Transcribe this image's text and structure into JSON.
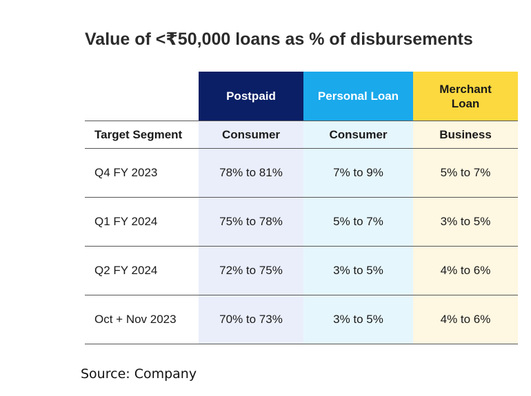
{
  "title": "Value of <₹50,000 loans as % of disbursements",
  "header": {
    "col0": "",
    "col1": "Postpaid",
    "col2": "Personal Loan",
    "col3_line1": "Merchant",
    "col3_line2": "Loan"
  },
  "segment": {
    "label": "Target Segment",
    "col1": "Consumer",
    "col2": "Consumer",
    "col3": "Business"
  },
  "rows": [
    {
      "period": "Q4 FY 2023",
      "postpaid": "78% to 81%",
      "personal_loan": "7% to 9%",
      "merchant_loan": "5% to 7%"
    },
    {
      "period": "Q1 FY 2024",
      "postpaid": "75% to 78%",
      "personal_loan": "5% to 7%",
      "merchant_loan": "3% to 5%"
    },
    {
      "period": "Q2 FY 2024",
      "postpaid": "72% to 75%",
      "personal_loan": "3% to 5%",
      "merchant_loan": "4% to 6%"
    },
    {
      "period": "Oct + Nov 2023",
      "postpaid": "70% to 73%",
      "personal_loan": "3% to 5%",
      "merchant_loan": "4% to 6%"
    }
  ],
  "source": "Source: Company",
  "colors": {
    "postpaid_header": "#0b1f66",
    "personal_loan_header": "#1aa9eb",
    "merchant_loan_header": "#fcd93f"
  }
}
